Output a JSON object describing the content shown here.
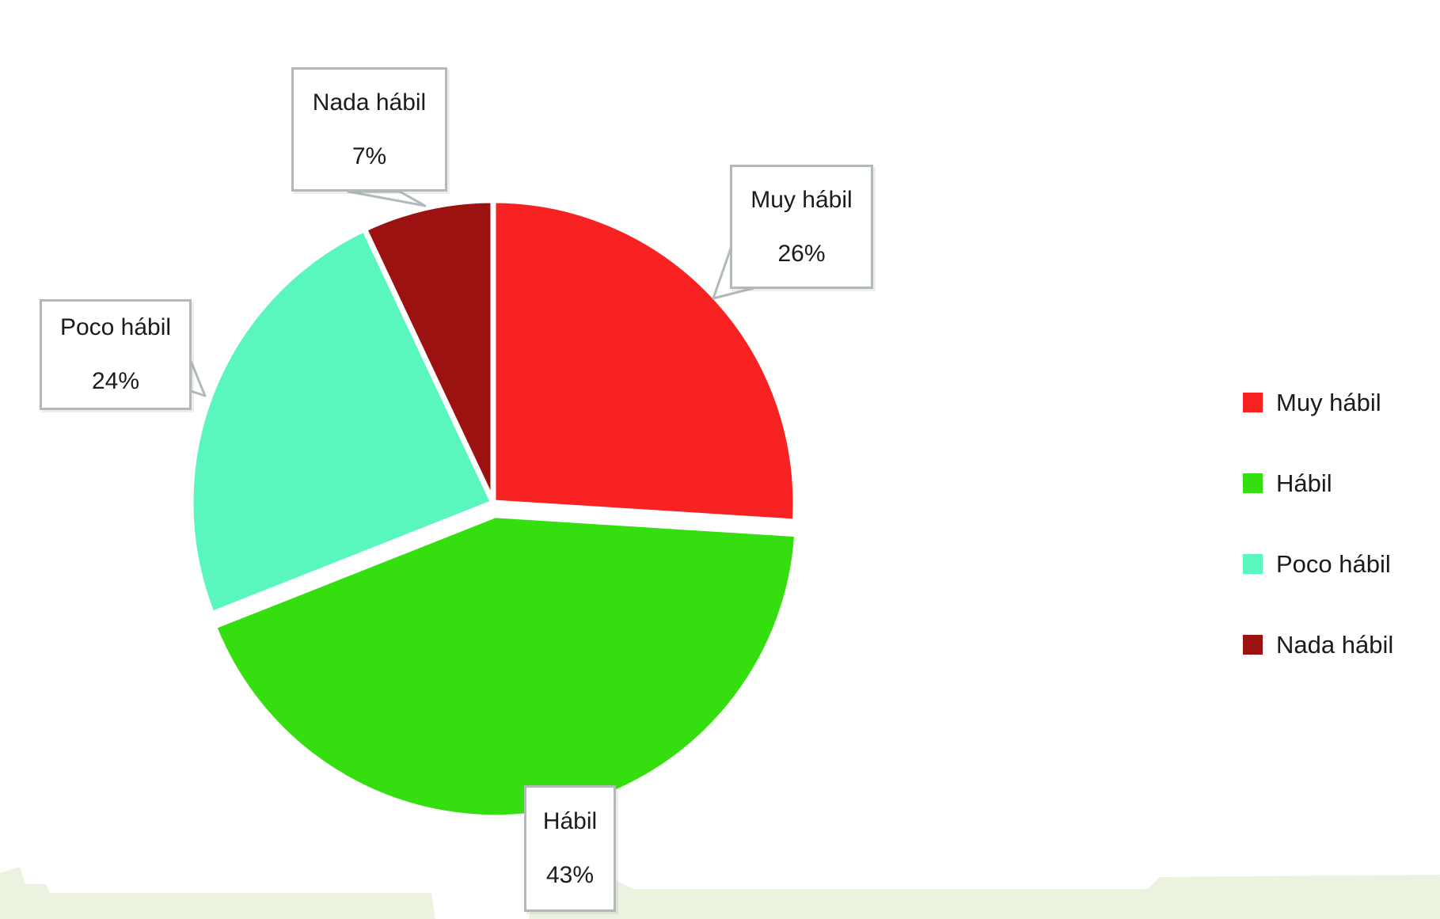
{
  "chart_data": {
    "type": "pie",
    "title": "",
    "start_angle_deg": 0,
    "direction": "clockwise",
    "legend_position": "right",
    "slices": [
      {
        "label": "Muy hábil",
        "value": 26,
        "pct_label": "26%",
        "color": "#F72221",
        "exploded": false
      },
      {
        "label": "Hábil",
        "value": 43,
        "pct_label": "43%",
        "color": "#35DE0E",
        "exploded": true
      },
      {
        "label": "Poco hábil",
        "value": 24,
        "pct_label": "24%",
        "color": "#59F7BD",
        "exploded": false
      },
      {
        "label": "Nada hábil",
        "value": 7,
        "pct_label": "7%",
        "color": "#9B1211",
        "exploded": false
      }
    ]
  },
  "legend": {
    "items": [
      "Muy hábil",
      "Hábil",
      "Poco hábil",
      "Nada hábil"
    ]
  },
  "colors": {
    "background": "#ffffff",
    "callout_border": "#b3b9b9",
    "slice_gap": "#ffffff",
    "bottom_band": "#ECF2E0",
    "text": "#1b1b1b"
  }
}
